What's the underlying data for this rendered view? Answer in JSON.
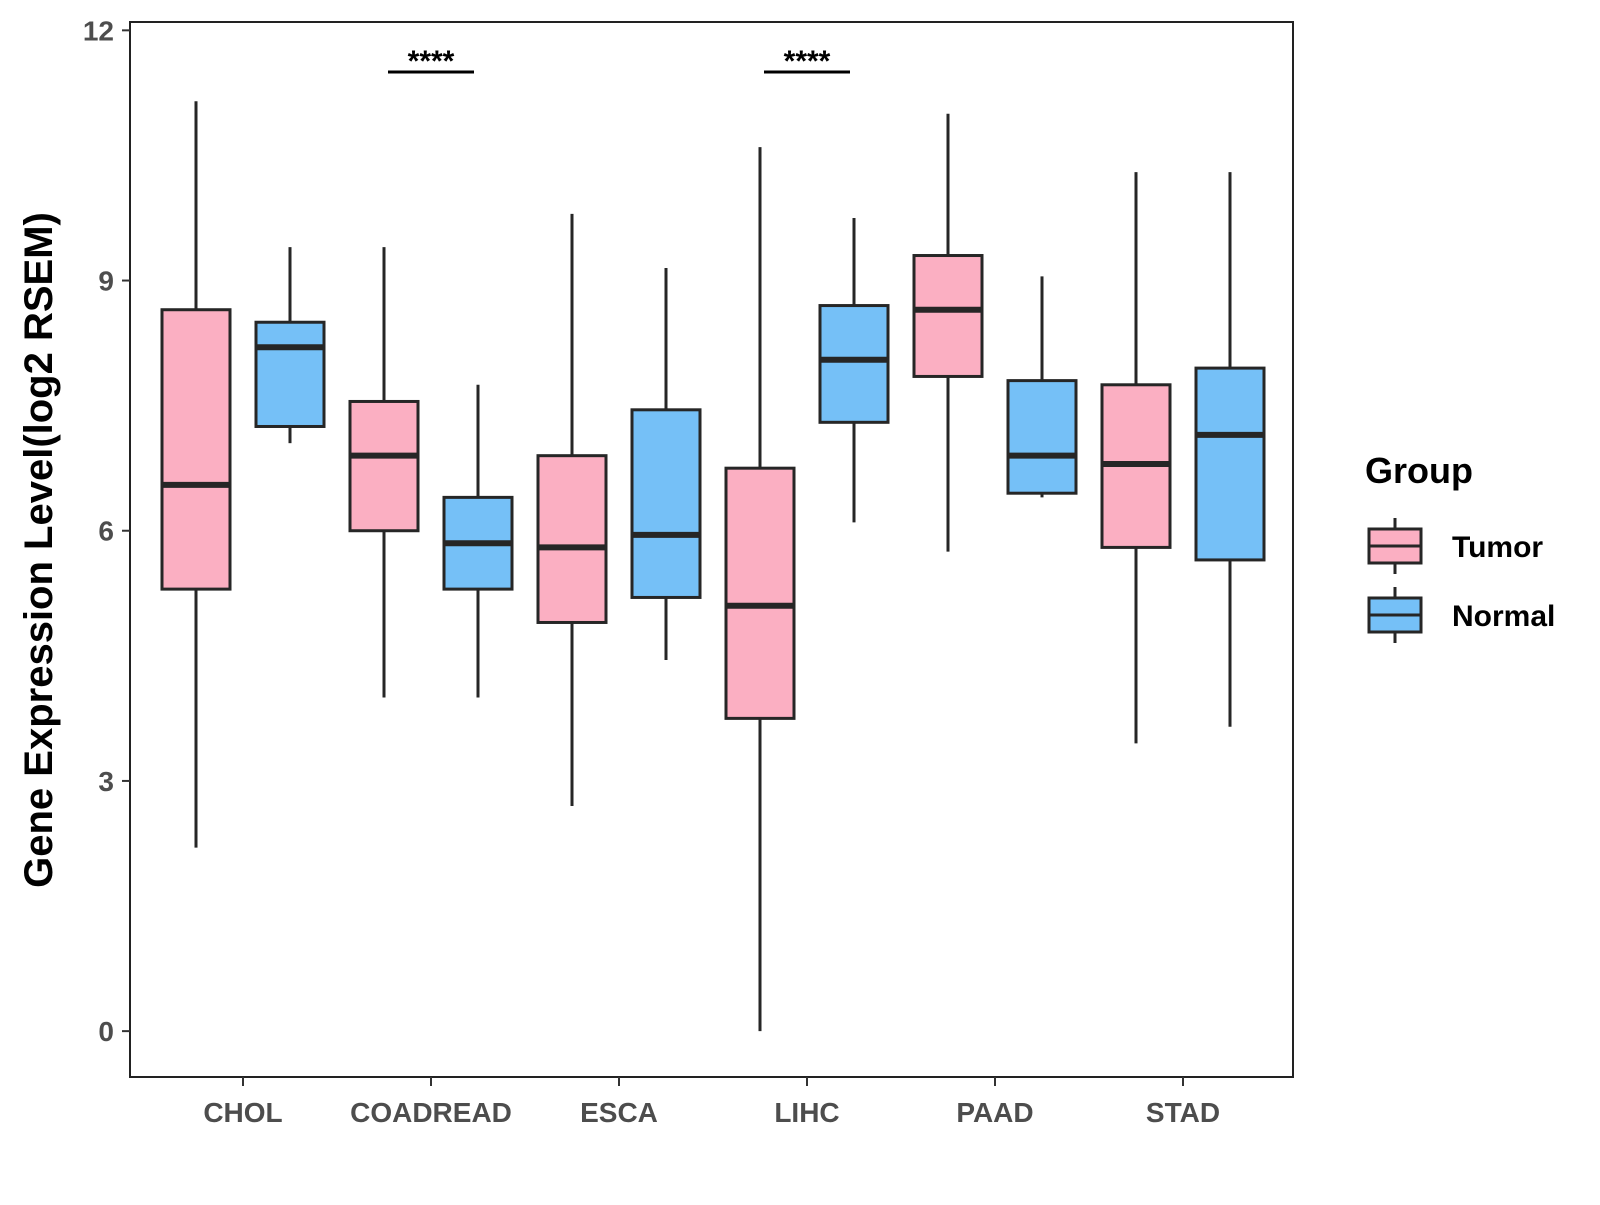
{
  "chart_data": {
    "type": "boxplot",
    "title": "",
    "xlabel": "",
    "ylabel": "Gene Expression Level(log2 RSEM)",
    "ylim": [
      -0.55,
      12.1
    ],
    "yticks": [
      0,
      3,
      6,
      9,
      12
    ],
    "ytick_labels": [
      "0",
      "3",
      "6",
      "9",
      "12"
    ],
    "grid": false,
    "categories": [
      "CHOL",
      "COADREAD",
      "ESCA",
      "LIHC",
      "PAAD",
      "STAD"
    ],
    "series": [
      {
        "name": "Tumor",
        "color": "#FBAFC2",
        "boxes": [
          {
            "min": 2.2,
            "q1": 5.3,
            "median": 6.55,
            "q3": 8.65,
            "max": 11.15
          },
          {
            "min": 4.0,
            "q1": 6.0,
            "median": 6.9,
            "q3": 7.55,
            "max": 9.4
          },
          {
            "min": 2.7,
            "q1": 4.9,
            "median": 5.8,
            "q3": 6.9,
            "max": 9.8
          },
          {
            "min": 0.0,
            "q1": 3.75,
            "median": 5.1,
            "q3": 6.75,
            "max": 10.6
          },
          {
            "min": 5.75,
            "q1": 7.85,
            "median": 8.65,
            "q3": 9.3,
            "max": 11.0
          },
          {
            "min": 3.45,
            "q1": 5.8,
            "median": 6.8,
            "q3": 7.75,
            "max": 10.3
          }
        ]
      },
      {
        "name": "Normal",
        "color": "#75C0F7",
        "boxes": [
          {
            "min": 7.05,
            "q1": 7.25,
            "median": 8.2,
            "q3": 8.5,
            "max": 9.4
          },
          {
            "min": 4.0,
            "q1": 5.3,
            "median": 5.85,
            "q3": 6.4,
            "max": 7.75
          },
          {
            "min": 4.45,
            "q1": 5.2,
            "median": 5.95,
            "q3": 7.45,
            "max": 9.15
          },
          {
            "min": 6.1,
            "q1": 7.3,
            "median": 8.05,
            "q3": 8.7,
            "max": 9.75
          },
          {
            "min": 6.4,
            "q1": 6.45,
            "median": 6.9,
            "q3": 7.8,
            "max": 9.05
          },
          {
            "min": 3.65,
            "q1": 5.65,
            "median": 7.15,
            "q3": 7.95,
            "max": 10.3
          }
        ]
      }
    ],
    "significance": [
      {
        "category": "COADREAD",
        "label": "****",
        "y": 11.5
      },
      {
        "category": "LIHC",
        "label": "****",
        "y": 11.5
      }
    ],
    "legend": {
      "title": "Group",
      "position": "right",
      "entries": [
        "Tumor",
        "Normal"
      ]
    }
  }
}
